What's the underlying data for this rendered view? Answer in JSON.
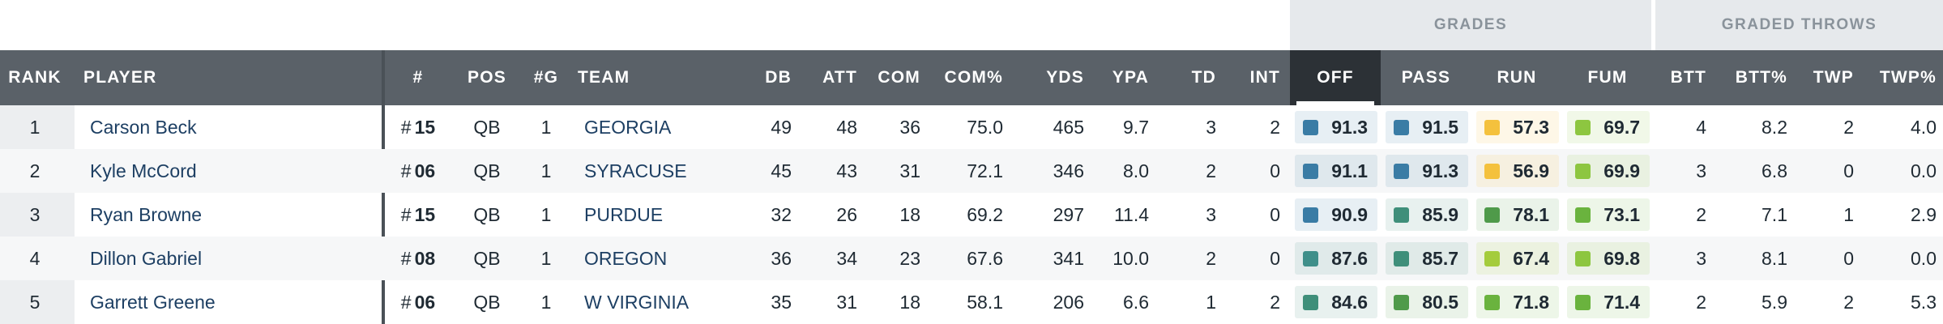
{
  "super_headers": {
    "grades": "GRADES",
    "graded_throws": "GRADED THROWS"
  },
  "columns": {
    "rank": "RANK",
    "player": "PLAYER",
    "jersey": "#",
    "pos": "POS",
    "games": "#G",
    "team": "TEAM",
    "db": "DB",
    "att": "ATT",
    "com": "COM",
    "com_pct": "COM%",
    "yds": "YDS",
    "ypa": "YPA",
    "td": "TD",
    "int": "INT",
    "off": "OFF",
    "pass": "PASS",
    "run": "RUN",
    "fum": "FUM",
    "btt": "BTT",
    "btt_pct": "BTT%",
    "twp": "TWP",
    "twp_pct": "TWP%"
  },
  "active_sort_column": "OFF",
  "grade_colors": {
    "elite": "#3a7ca5",
    "high": "#3f8f7a",
    "good": "#4f9a4a",
    "above_avg": "#8dc640",
    "avg": "#f4c13d"
  },
  "rows": [
    {
      "rank": "1",
      "player": "Carson Beck",
      "hash": "#",
      "jersey": "15",
      "pos": "QB",
      "games": "1",
      "team": "GEORGIA",
      "db": "49",
      "att": "48",
      "com": "36",
      "com_pct": "75.0",
      "yds": "465",
      "ypa": "9.7",
      "td": "3",
      "int": "2",
      "off": "91.3",
      "off_color": "#3a7ca5",
      "pass": "91.5",
      "pass_color": "#3a7ca5",
      "run": "57.3",
      "run_color": "#f4c13d",
      "fum": "69.7",
      "fum_color": "#8dc640",
      "btt": "4",
      "btt_pct": "8.2",
      "twp": "2",
      "twp_pct": "4.0"
    },
    {
      "rank": "2",
      "player": "Kyle McCord",
      "hash": "#",
      "jersey": "06",
      "pos": "QB",
      "games": "1",
      "team": "SYRACUSE",
      "db": "45",
      "att": "43",
      "com": "31",
      "com_pct": "72.1",
      "yds": "346",
      "ypa": "8.0",
      "td": "2",
      "int": "0",
      "off": "91.1",
      "off_color": "#3a7ca5",
      "pass": "91.3",
      "pass_color": "#3a7ca5",
      "run": "56.9",
      "run_color": "#f4c13d",
      "fum": "69.9",
      "fum_color": "#8dc640",
      "btt": "3",
      "btt_pct": "6.8",
      "twp": "0",
      "twp_pct": "0.0"
    },
    {
      "rank": "3",
      "player": "Ryan Browne",
      "hash": "#",
      "jersey": "15",
      "pos": "QB",
      "games": "1",
      "team": "PURDUE",
      "db": "32",
      "att": "26",
      "com": "18",
      "com_pct": "69.2",
      "yds": "297",
      "ypa": "11.4",
      "td": "3",
      "int": "0",
      "off": "90.9",
      "off_color": "#3a7ca5",
      "pass": "85.9",
      "pass_color": "#3f8f7a",
      "run": "78.1",
      "run_color": "#4f9a4a",
      "fum": "73.1",
      "fum_color": "#6ab33e",
      "btt": "2",
      "btt_pct": "7.1",
      "twp": "1",
      "twp_pct": "2.9"
    },
    {
      "rank": "4",
      "player": "Dillon Gabriel",
      "hash": "#",
      "jersey": "08",
      "pos": "QB",
      "games": "1",
      "team": "OREGON",
      "db": "36",
      "att": "34",
      "com": "23",
      "com_pct": "67.6",
      "yds": "341",
      "ypa": "10.0",
      "td": "2",
      "int": "0",
      "off": "87.6",
      "off_color": "#3f8f8a",
      "pass": "85.7",
      "pass_color": "#3f8f7a",
      "run": "67.4",
      "run_color": "#a4cc3c",
      "fum": "69.8",
      "fum_color": "#8dc640",
      "btt": "3",
      "btt_pct": "8.1",
      "twp": "0",
      "twp_pct": "0.0"
    },
    {
      "rank": "5",
      "player": "Garrett Greene",
      "hash": "#",
      "jersey": "06",
      "pos": "QB",
      "games": "1",
      "team": "W VIRGINIA",
      "db": "35",
      "att": "31",
      "com": "18",
      "com_pct": "58.1",
      "yds": "206",
      "ypa": "6.6",
      "td": "1",
      "int": "2",
      "off": "84.6",
      "off_color": "#3f8f7a",
      "pass": "80.5",
      "pass_color": "#4f9a4a",
      "run": "71.8",
      "run_color": "#6ab33e",
      "fum": "71.4",
      "fum_color": "#6ab33e",
      "btt": "2",
      "btt_pct": "5.9",
      "twp": "2",
      "twp_pct": "5.3"
    }
  ]
}
